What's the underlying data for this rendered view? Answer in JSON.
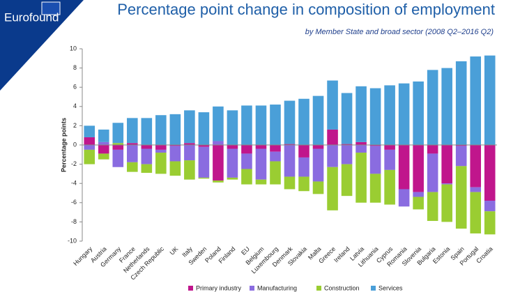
{
  "logo": "Eurofound",
  "chart_data": {
    "type": "stacked-bar",
    "title": "Percentage point change in composition of employment",
    "subtitle": "by Member State and broad sector (2008 Q2–2016 Q2)",
    "ylabel": "Percentage points",
    "categories": [
      "Hungary",
      "Austria",
      "Germany",
      "France",
      "Netherlands",
      "Czech Republic",
      "UK",
      "Italy",
      "Sweden",
      "Poland",
      "Finland",
      "EU",
      "Belgium",
      "Luxembourg",
      "Denmark",
      "Slovakia",
      "Malta",
      "Greece",
      "Ireland",
      "Latvia",
      "Lithuania",
      "Cyprus",
      "Romania",
      "Slovenia",
      "Bulgaria",
      "Estonia",
      "Spain",
      "Portugal",
      "Croatia"
    ],
    "series": [
      {
        "name": "Primary industry",
        "color": "#c0168c",
        "values": [
          0.8,
          -0.9,
          -0.5,
          0.2,
          -0.4,
          -0.5,
          -0.1,
          0.2,
          -0.2,
          -3.7,
          -0.4,
          -0.9,
          -0.4,
          -0.7,
          0.1,
          -1.3,
          -0.4,
          1.6,
          0.1,
          0.3,
          -0.1,
          -0.5,
          -4.6,
          -4.9,
          -0.9,
          -4.0,
          -0.1,
          -4.4,
          -5.8
        ]
      },
      {
        "name": "Manufacturing",
        "color": "#8a6ce0",
        "values": [
          -0.5,
          0.3,
          -1.8,
          -1.8,
          -1.6,
          -0.3,
          -1.6,
          -1.6,
          -3.2,
          0.4,
          -3.0,
          -1.6,
          -3.2,
          -1.0,
          -3.3,
          -2.0,
          -3.4,
          -2.3,
          -2.0,
          -0.8,
          -2.9,
          -2.1,
          -1.8,
          -0.5,
          -4.0,
          -0.1,
          -2.1,
          -0.5,
          -1.1
        ]
      },
      {
        "name": "Construction",
        "color": "#9acd32",
        "values": [
          -1.5,
          -0.6,
          0.2,
          -1.0,
          -0.9,
          -2.2,
          -1.5,
          -2.0,
          -0.1,
          -0.2,
          -0.2,
          -1.6,
          -0.5,
          -2.4,
          -1.3,
          -1.5,
          -1.3,
          -4.5,
          -3.3,
          -5.2,
          -3.0,
          -3.6,
          0,
          -1.3,
          -3.0,
          -3.9,
          -6.5,
          -4.3,
          -2.4
        ]
      },
      {
        "name": "Services",
        "color": "#4a9fd8",
        "values": [
          1.2,
          1.3,
          2.1,
          2.6,
          2.8,
          3.1,
          3.2,
          3.4,
          3.4,
          3.6,
          3.6,
          4.1,
          4.1,
          4.2,
          4.5,
          4.8,
          5.1,
          5.1,
          5.3,
          5.8,
          5.9,
          6.2,
          6.4,
          6.6,
          7.8,
          8.0,
          8.7,
          9.2,
          9.3
        ]
      }
    ],
    "ylim": [
      -10,
      10
    ],
    "yticks": [
      -10,
      -8,
      -6,
      -4,
      -2,
      0,
      2,
      4,
      6,
      8,
      10
    ],
    "grid": false
  }
}
